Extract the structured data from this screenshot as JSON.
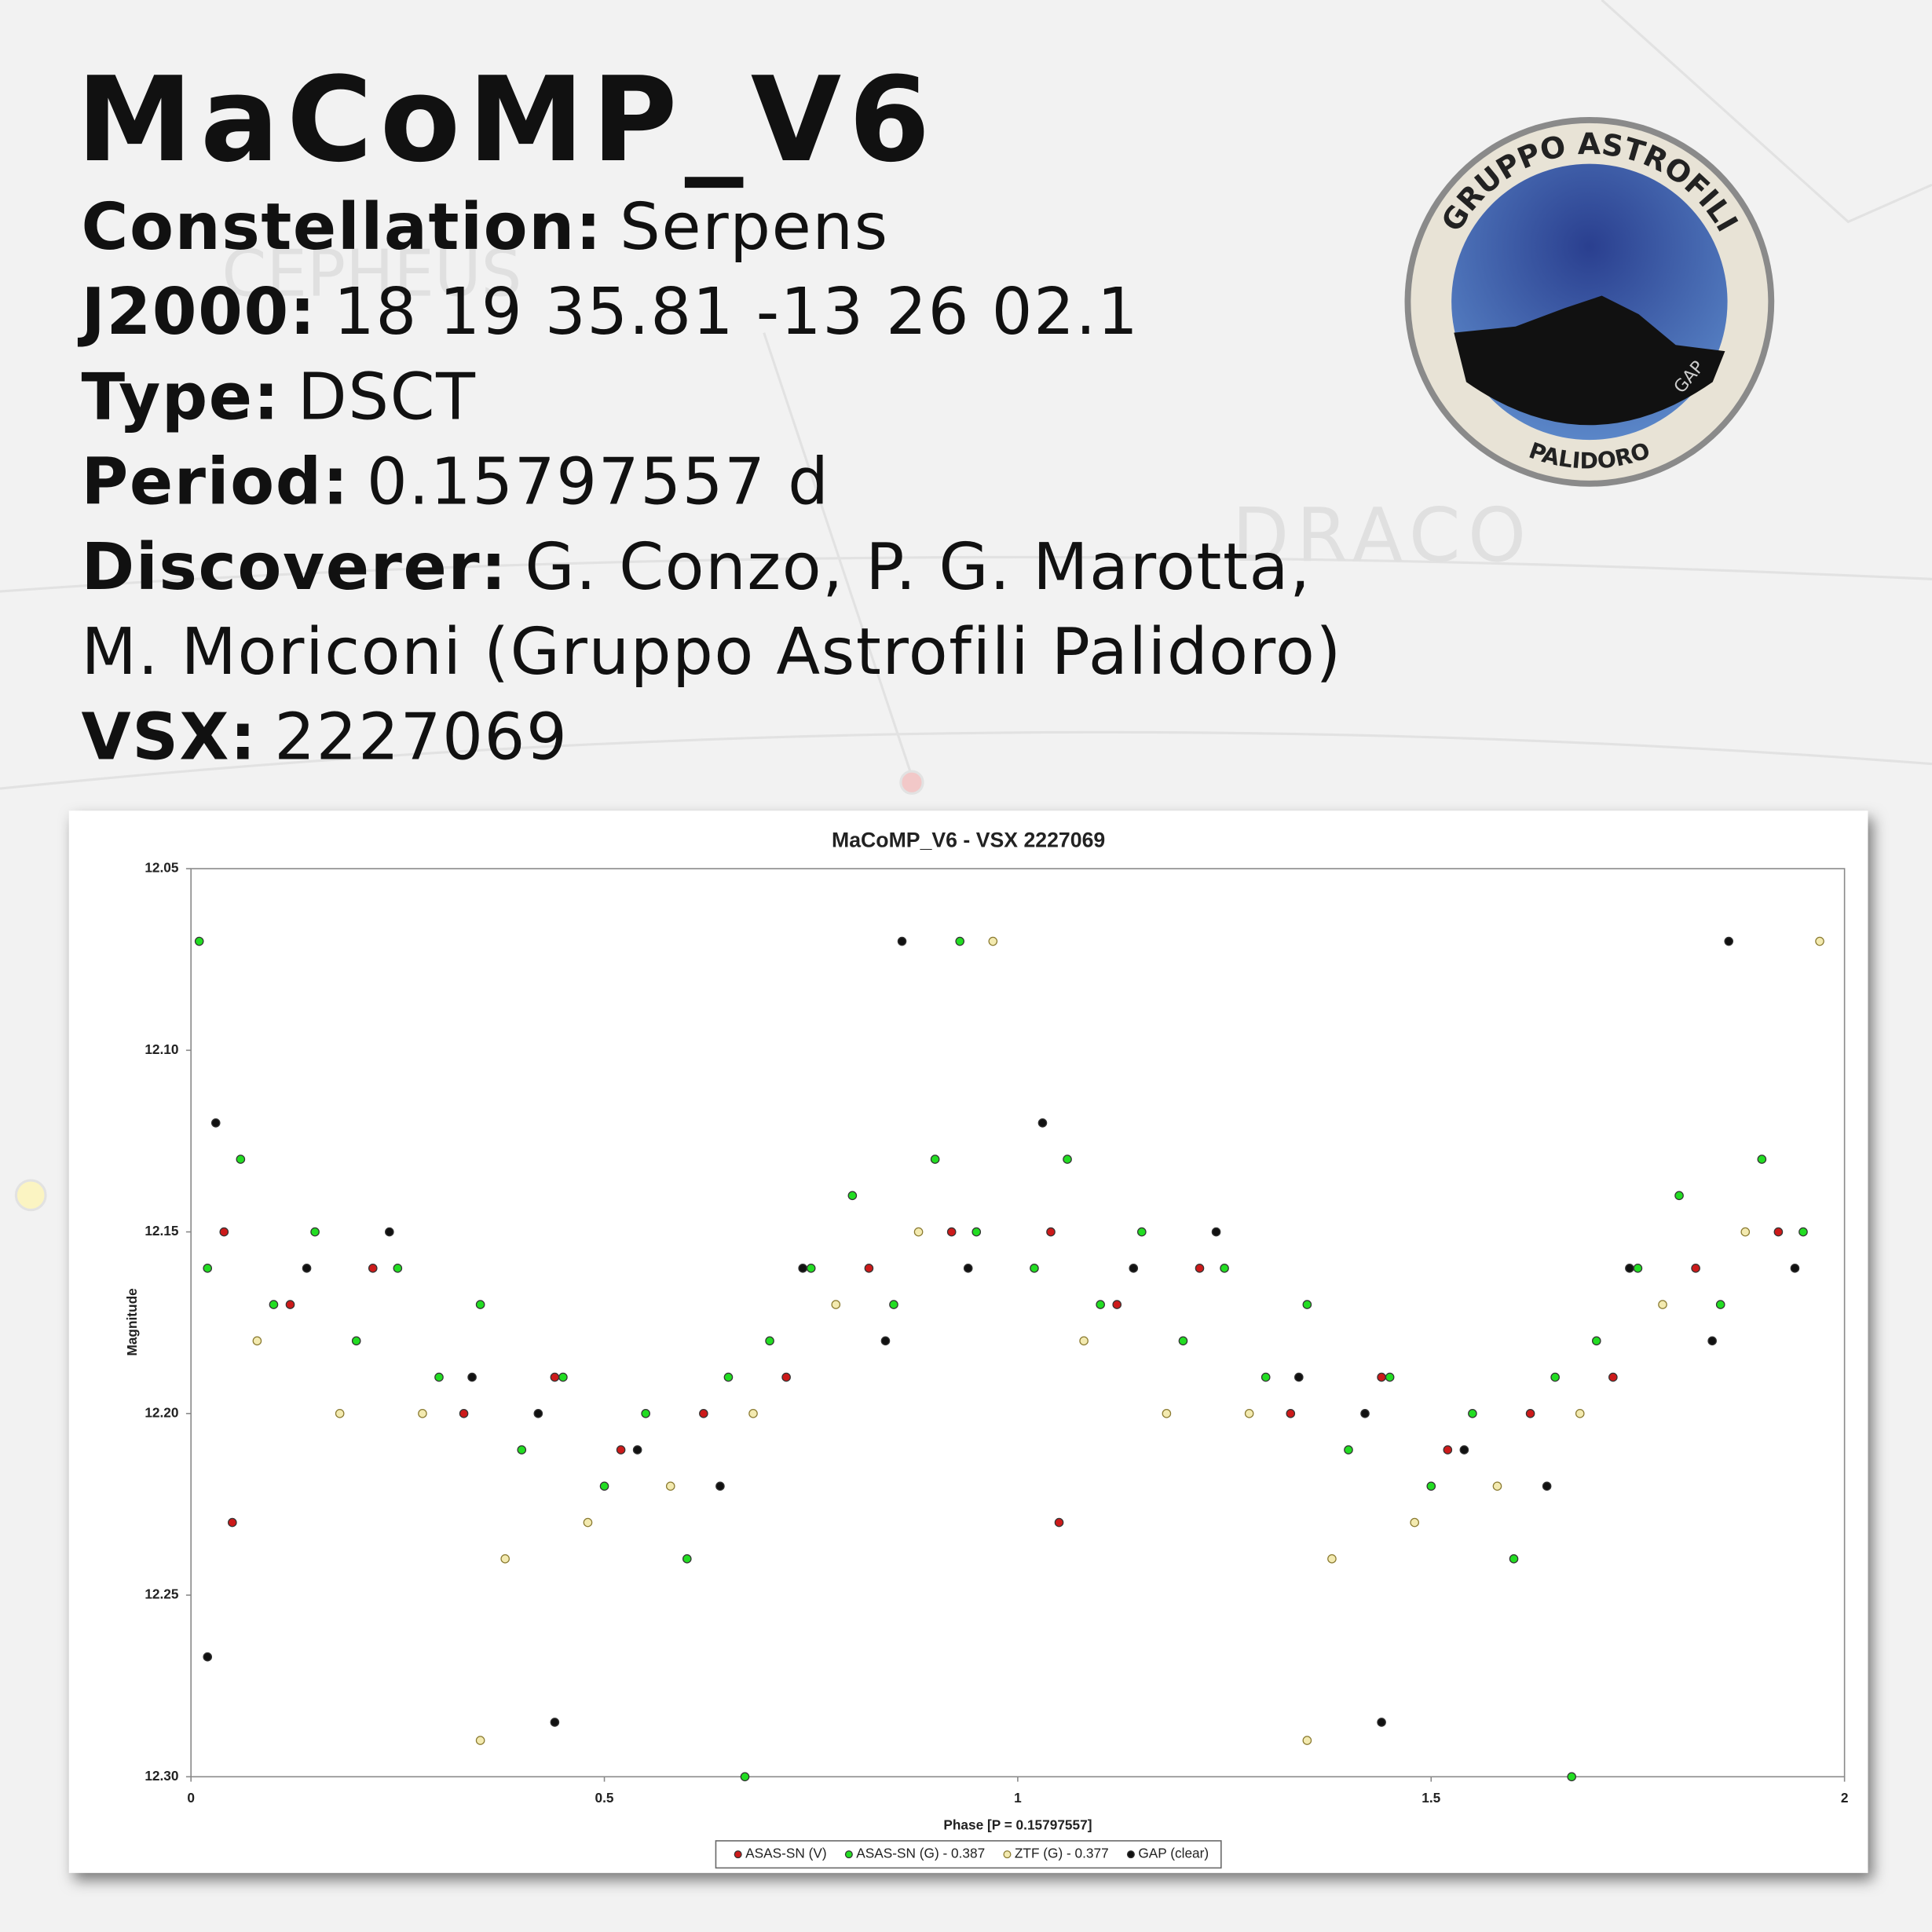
{
  "background": {
    "labels": [
      "CEPHEUS",
      "DRACO"
    ]
  },
  "header": {
    "title": "MaCoMP_V6",
    "fields": [
      {
        "label": "Constellation:",
        "value": "Serpens"
      },
      {
        "label": "J2000:",
        "value": "18 19 35.81 -13 26 02.1"
      },
      {
        "label": "Type:",
        "value": "DSCT"
      },
      {
        "label": "Period:",
        "value": "0.15797557 d"
      },
      {
        "label": "Discoverer:",
        "value": "G. Conzo, P. G. Marotta,"
      }
    ],
    "discoverer_continued": "M. Moriconi (Gruppo Astrofili Palidoro)",
    "vsx": {
      "label": "VSX:",
      "value": "2227069"
    }
  },
  "logo": {
    "top": "GRUPPO ASTROFILI",
    "bottom": "PALIDORO",
    "side": "GAP"
  },
  "chart_data": {
    "type": "scatter",
    "title": "MaCoMP_V6 - VSX 2227069",
    "x_label": "Phase [P = 0.15797557]",
    "y_label": "Magnitude",
    "xlim": [
      0,
      2
    ],
    "xticks": [
      0,
      0.5,
      1,
      1.5,
      2
    ],
    "ylim": [
      12.05,
      12.3
    ],
    "y_inverted": true,
    "yticks": [
      12.05,
      {
        "value": 12.1,
        "label": "12.10"
      },
      12.15,
      {
        "value": 12.2,
        "label": "12.20"
      },
      12.25,
      {
        "value": 12.3,
        "label": "12.30"
      }
    ],
    "legend": "bottom",
    "series": [
      {
        "name": "ASAS-SN (V)",
        "color": "#cc1a1a",
        "x": [
          0.04,
          0.12,
          0.22,
          0.33,
          0.44,
          0.52,
          0.62,
          0.72,
          0.82,
          0.92,
          1.04,
          1.12,
          1.22,
          1.33,
          1.44,
          1.52,
          1.62,
          1.72,
          1.82,
          1.92,
          0.05,
          1.05
        ],
        "values": [
          12.15,
          12.17,
          12.16,
          12.2,
          12.19,
          12.21,
          12.2,
          12.19,
          12.16,
          12.15,
          12.15,
          12.17,
          12.16,
          12.2,
          12.19,
          12.21,
          12.2,
          12.19,
          12.16,
          12.15,
          12.23,
          12.23
        ]
      },
      {
        "name": "ASAS-SN (G) - 0.387",
        "color": "#22dd22",
        "x": [
          0.02,
          0.06,
          0.1,
          0.15,
          0.2,
          0.25,
          0.3,
          0.35,
          0.4,
          0.45,
          0.5,
          0.55,
          0.6,
          0.65,
          0.7,
          0.75,
          0.8,
          0.85,
          0.9,
          0.95,
          1.02,
          1.06,
          1.1,
          1.15,
          1.2,
          1.25,
          1.3,
          1.35,
          1.4,
          1.45,
          1.5,
          1.55,
          1.6,
          1.65,
          1.7,
          1.75,
          1.8,
          1.85,
          1.9,
          1.95,
          0.01,
          0.67,
          1.67,
          0.93
        ],
        "values": [
          12.16,
          12.13,
          12.17,
          12.15,
          12.18,
          12.16,
          12.19,
          12.17,
          12.21,
          12.19,
          12.22,
          12.2,
          12.24,
          12.19,
          12.18,
          12.16,
          12.14,
          12.17,
          12.13,
          12.15,
          12.16,
          12.13,
          12.17,
          12.15,
          12.18,
          12.16,
          12.19,
          12.17,
          12.21,
          12.19,
          12.22,
          12.2,
          12.24,
          12.19,
          12.18,
          12.16,
          12.14,
          12.17,
          12.13,
          12.15,
          12.07,
          12.3,
          12.3,
          12.07
        ]
      },
      {
        "name": "ZTF (G) - 0.377",
        "color": "#f3eab0",
        "x": [
          0.08,
          0.18,
          0.28,
          0.38,
          0.48,
          0.58,
          0.68,
          0.78,
          0.88,
          0.97,
          1.08,
          1.18,
          1.28,
          1.38,
          1.48,
          1.58,
          1.68,
          1.78,
          1.88,
          1.97,
          0.35,
          1.35
        ],
        "values": [
          12.18,
          12.2,
          12.2,
          12.24,
          12.23,
          12.22,
          12.2,
          12.17,
          12.15,
          12.07,
          12.18,
          12.2,
          12.2,
          12.24,
          12.23,
          12.22,
          12.2,
          12.17,
          12.15,
          12.07,
          12.29,
          12.29
        ]
      },
      {
        "name": "GAP (clear)",
        "color": "#111111",
        "x": [
          0.03,
          0.14,
          0.24,
          0.34,
          0.42,
          0.54,
          0.64,
          0.74,
          0.84,
          0.94,
          1.03,
          1.14,
          1.24,
          1.34,
          1.42,
          1.54,
          1.64,
          1.74,
          1.84,
          1.94,
          0.86,
          1.86,
          0.44,
          1.44,
          0.02
        ],
        "values": [
          12.12,
          12.16,
          12.15,
          12.19,
          12.2,
          12.21,
          12.22,
          12.16,
          12.18,
          12.16,
          12.12,
          12.16,
          12.15,
          12.19,
          12.2,
          12.21,
          12.22,
          12.16,
          12.18,
          12.16,
          12.07,
          12.07,
          12.285,
          12.285,
          12.267
        ]
      }
    ]
  }
}
